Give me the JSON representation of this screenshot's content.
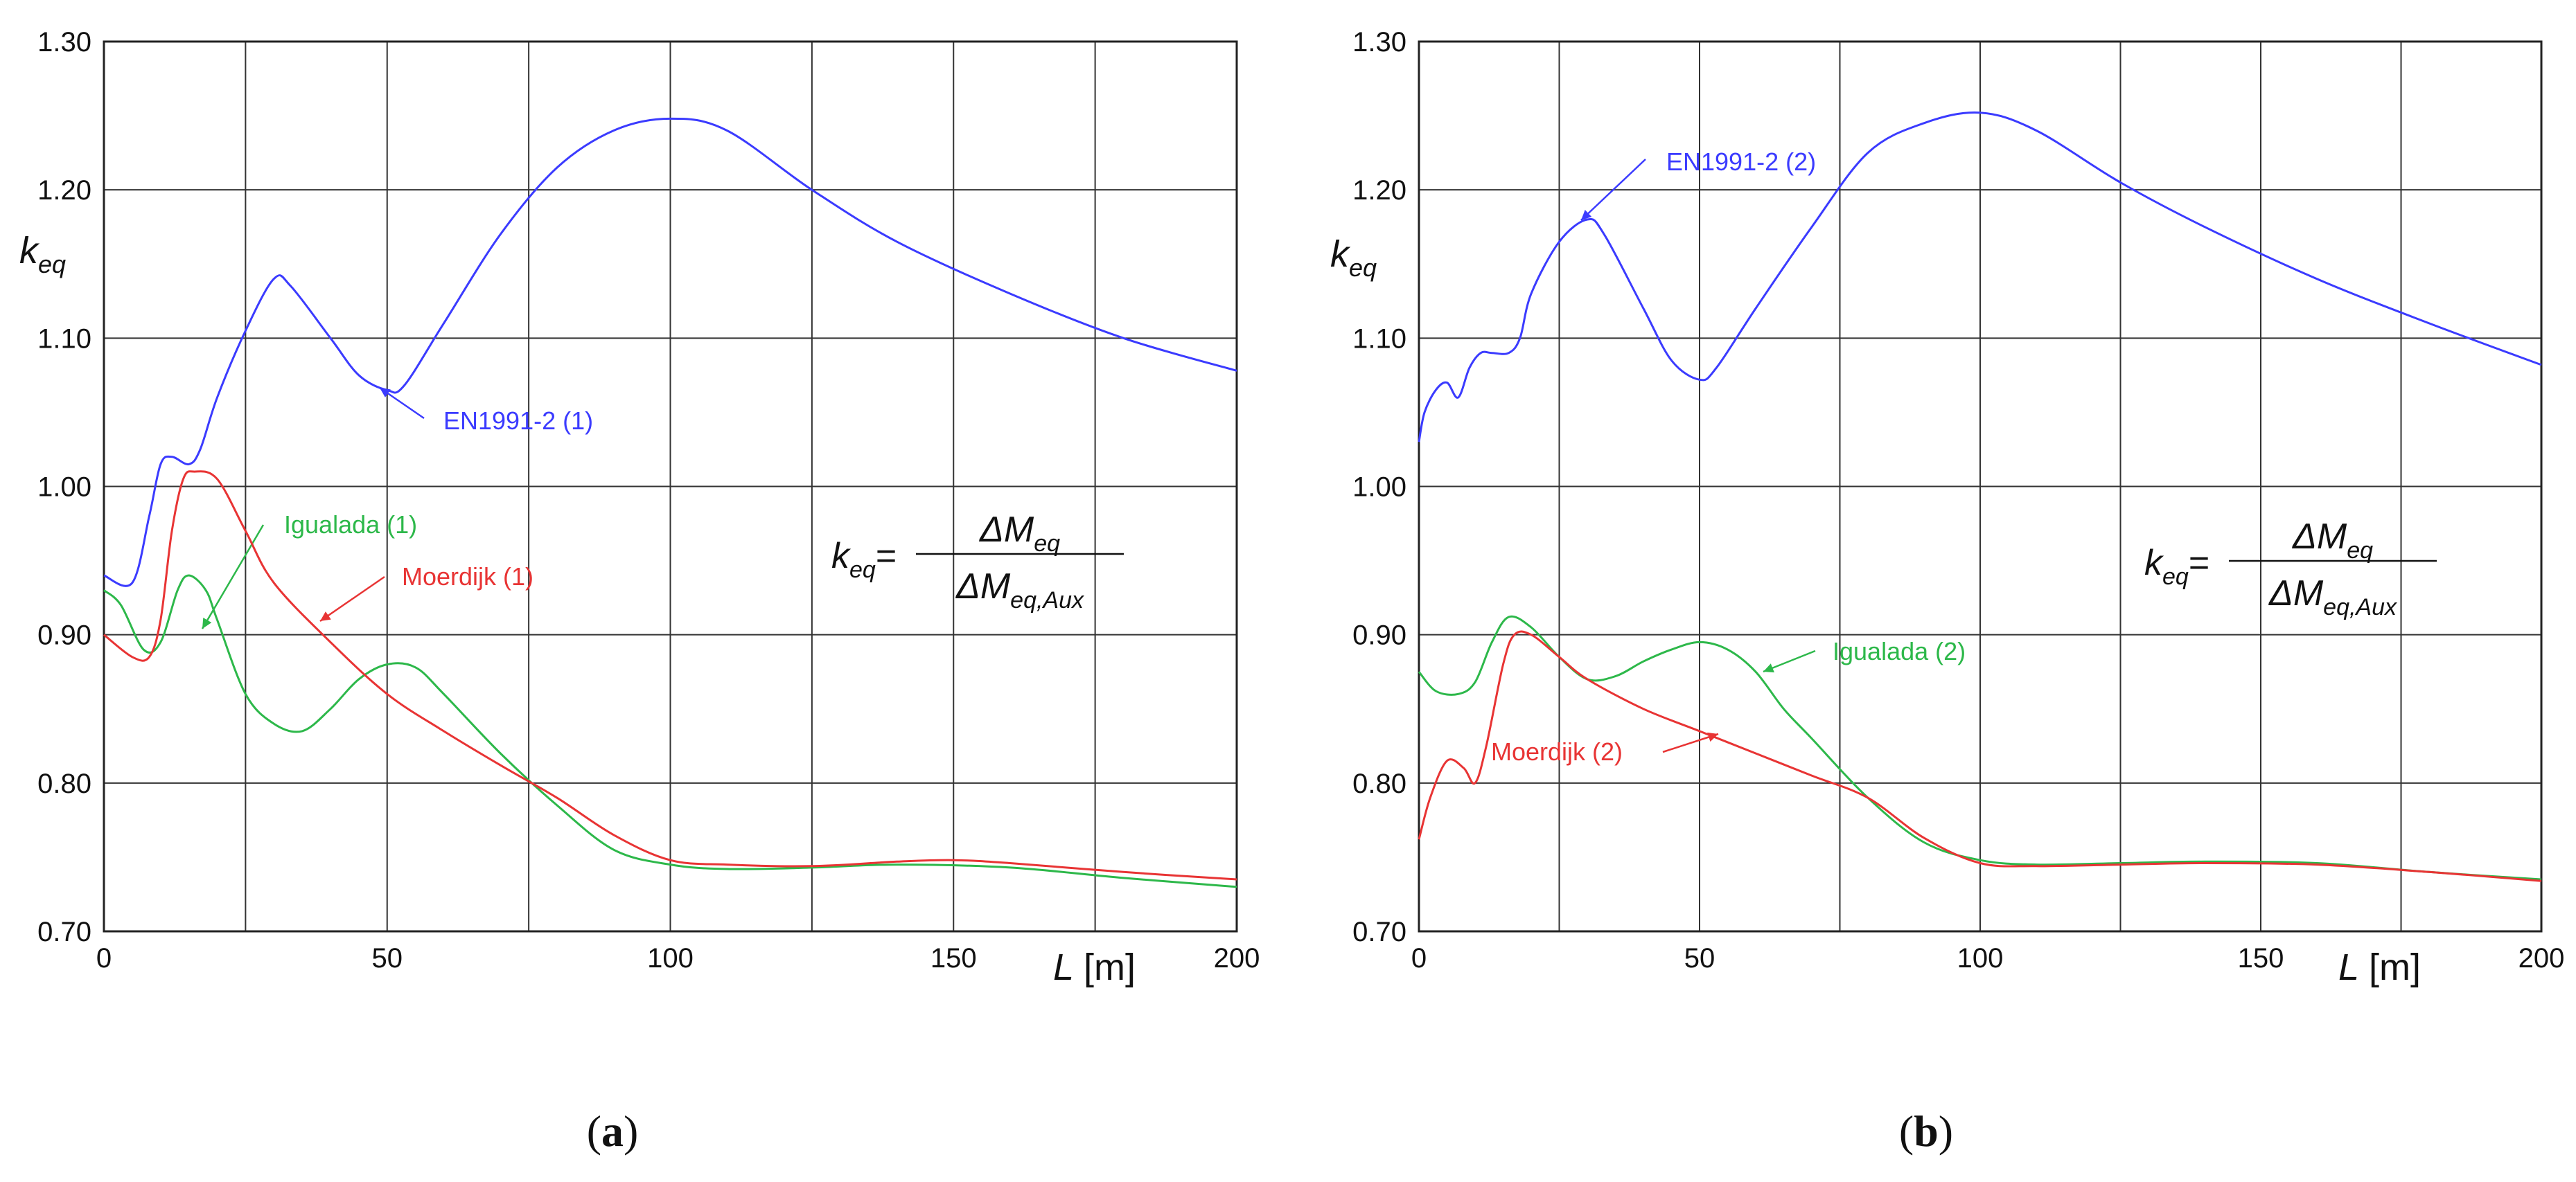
{
  "chart_data": [
    {
      "type": "line",
      "panel_label": "a",
      "ylabel": "k",
      "ylabel_sub": "eq",
      "xlabel": "L",
      "xlabel_unit": "[m]",
      "xlim": [
        0,
        200
      ],
      "ylim": [
        0.7,
        1.3
      ],
      "x_ticks": [
        "0",
        "50",
        "100",
        "150",
        "200"
      ],
      "y_ticks": [
        "0.70",
        "0.80",
        "0.90",
        "1.00",
        "1.10",
        "1.20",
        "1.30"
      ],
      "grid": true,
      "formula": {
        "lhs": "k",
        "lhs_sub": "eq",
        "num": "ΔM",
        "num_sub": "eq",
        "den": "ΔM",
        "den_sub": "eq,Aux"
      },
      "series": [
        {
          "name": "EN1991-2 (1)",
          "color": "#3b3bff",
          "x": [
            0,
            5,
            8,
            10,
            12,
            15,
            17,
            20,
            25,
            30,
            33,
            40,
            45,
            50,
            53,
            60,
            70,
            80,
            90,
            100,
            110,
            125,
            140,
            160,
            180,
            200
          ],
          "y": [
            0.94,
            0.935,
            0.98,
            1.015,
            1.02,
            1.015,
            1.025,
            1.06,
            1.105,
            1.14,
            1.135,
            1.1,
            1.075,
            1.065,
            1.068,
            1.11,
            1.17,
            1.215,
            1.24,
            1.248,
            1.24,
            1.2,
            1.165,
            1.13,
            1.1,
            1.078
          ]
        },
        {
          "name": "Igualada (1)",
          "color": "#2db84a",
          "x": [
            0,
            3,
            7,
            10,
            13,
            15,
            18,
            20,
            25,
            30,
            35,
            40,
            45,
            50,
            55,
            60,
            70,
            80,
            90,
            100,
            110,
            125,
            140,
            160,
            180,
            200
          ],
          "y": [
            0.93,
            0.92,
            0.89,
            0.895,
            0.93,
            0.94,
            0.93,
            0.91,
            0.86,
            0.84,
            0.835,
            0.85,
            0.87,
            0.88,
            0.878,
            0.86,
            0.82,
            0.785,
            0.755,
            0.745,
            0.742,
            0.743,
            0.745,
            0.743,
            0.736,
            0.73
          ]
        },
        {
          "name": "Moerdijk (1)",
          "color": "#e83434",
          "x": [
            0,
            5,
            8,
            10,
            12,
            14,
            16,
            20,
            25,
            30,
            40,
            50,
            60,
            70,
            80,
            90,
            100,
            110,
            125,
            140,
            150,
            160,
            180,
            200
          ],
          "y": [
            0.9,
            0.885,
            0.885,
            0.91,
            0.97,
            1.005,
            1.01,
            1.005,
            0.97,
            0.935,
            0.895,
            0.86,
            0.835,
            0.812,
            0.79,
            0.765,
            0.748,
            0.745,
            0.744,
            0.747,
            0.748,
            0.746,
            0.74,
            0.735
          ]
        }
      ]
    },
    {
      "type": "line",
      "panel_label": "b",
      "ylabel": "k",
      "ylabel_sub": "eq",
      "xlabel": "L",
      "xlabel_unit": "[m]",
      "xlim": [
        0,
        200
      ],
      "ylim": [
        0.7,
        1.3
      ],
      "x_ticks": [
        "0",
        "50",
        "100",
        "150",
        "200"
      ],
      "y_ticks": [
        "0.70",
        "0.80",
        "0.90",
        "1.00",
        "1.10",
        "1.20",
        "1.30"
      ],
      "grid": true,
      "formula": {
        "lhs": "k",
        "lhs_sub": "eq",
        "num": "ΔM",
        "num_sub": "eq",
        "den": "ΔM",
        "den_sub": "eq,Aux"
      },
      "series": [
        {
          "name": "EN1991-2 (2)",
          "color": "#3b3bff",
          "x": [
            0,
            1,
            3,
            5,
            7,
            9,
            11,
            13,
            16,
            18,
            20,
            25,
            30,
            33,
            40,
            45,
            50,
            53,
            60,
            70,
            80,
            90,
            100,
            110,
            125,
            140,
            160,
            180,
            200
          ],
          "y": [
            1.03,
            1.05,
            1.065,
            1.07,
            1.06,
            1.08,
            1.09,
            1.09,
            1.09,
            1.1,
            1.13,
            1.165,
            1.18,
            1.17,
            1.12,
            1.085,
            1.072,
            1.08,
            1.12,
            1.175,
            1.225,
            1.245,
            1.252,
            1.24,
            1.205,
            1.175,
            1.14,
            1.11,
            1.082
          ]
        },
        {
          "name": "Igualada (2)",
          "color": "#2db84a",
          "x": [
            0,
            3,
            7,
            10,
            13,
            16,
            20,
            25,
            30,
            35,
            40,
            45,
            50,
            55,
            60,
            65,
            70,
            80,
            90,
            100,
            110,
            125,
            140,
            160,
            180,
            200
          ],
          "y": [
            0.875,
            0.862,
            0.86,
            0.868,
            0.895,
            0.912,
            0.905,
            0.885,
            0.87,
            0.872,
            0.882,
            0.89,
            0.895,
            0.89,
            0.875,
            0.85,
            0.83,
            0.79,
            0.76,
            0.748,
            0.745,
            0.746,
            0.747,
            0.746,
            0.74,
            0.735
          ]
        },
        {
          "name": "Moerdijk (2)",
          "color": "#e83434",
          "x": [
            0,
            2,
            5,
            8,
            10,
            12,
            15,
            17,
            20,
            25,
            30,
            40,
            50,
            60,
            70,
            80,
            90,
            100,
            110,
            125,
            140,
            160,
            180,
            200
          ],
          "y": [
            0.762,
            0.79,
            0.815,
            0.81,
            0.8,
            0.825,
            0.88,
            0.9,
            0.9,
            0.885,
            0.87,
            0.85,
            0.835,
            0.82,
            0.805,
            0.79,
            0.763,
            0.746,
            0.744,
            0.745,
            0.746,
            0.745,
            0.74,
            0.734
          ]
        }
      ]
    }
  ]
}
